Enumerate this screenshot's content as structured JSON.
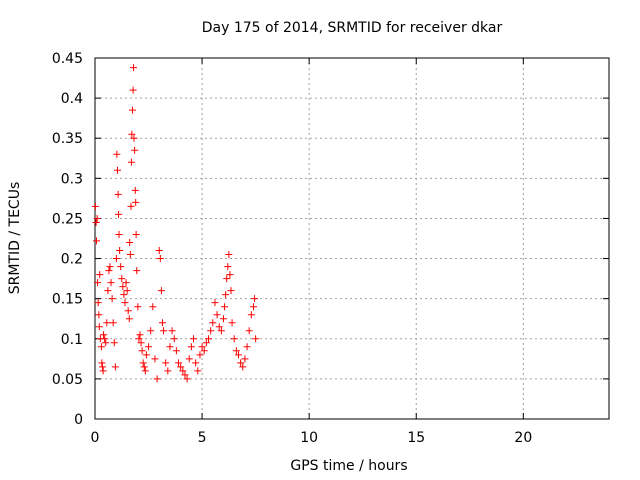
{
  "chart_data": {
    "type": "scatter",
    "title": "Day 175 of 2014, SRMTID for receiver dkar",
    "xlabel": "GPS time / hours",
    "ylabel": "SRMTID / TECUs",
    "xlim": [
      0,
      24
    ],
    "ylim": [
      0,
      0.45
    ],
    "xticks": [
      0,
      5,
      10,
      15,
      20
    ],
    "xtick_labels": [
      "0",
      "5",
      "10",
      "15",
      "20"
    ],
    "yticks": [
      0,
      0.05,
      0.1,
      0.15,
      0.2,
      0.25,
      0.3,
      0.35,
      0.4,
      0.45
    ],
    "ytick_labels": [
      "0",
      "0.05",
      "0.1",
      "0.15",
      "0.2",
      "0.25",
      "0.3",
      "0.35",
      "0.4",
      "0.45"
    ],
    "grid": true,
    "marker": "+",
    "color": "#ff0000",
    "series": [
      {
        "name": "SRMTID",
        "points": [
          [
            0.02,
            0.265
          ],
          [
            0.05,
            0.245
          ],
          [
            0.07,
            0.222
          ],
          [
            0.1,
            0.25
          ],
          [
            0.12,
            0.17
          ],
          [
            0.15,
            0.145
          ],
          [
            0.18,
            0.13
          ],
          [
            0.2,
            0.115
          ],
          [
            0.22,
            0.18
          ],
          [
            0.25,
            0.1
          ],
          [
            0.3,
            0.09
          ],
          [
            0.32,
            0.07
          ],
          [
            0.35,
            0.065
          ],
          [
            0.38,
            0.06
          ],
          [
            0.4,
            0.105
          ],
          [
            0.45,
            0.1
          ],
          [
            0.5,
            0.095
          ],
          [
            0.55,
            0.12
          ],
          [
            0.6,
            0.16
          ],
          [
            0.65,
            0.185
          ],
          [
            0.7,
            0.19
          ],
          [
            0.75,
            0.17
          ],
          [
            0.8,
            0.15
          ],
          [
            0.85,
            0.12
          ],
          [
            0.9,
            0.095
          ],
          [
            0.95,
            0.065
          ],
          [
            1.0,
            0.2
          ],
          [
            1.02,
            0.33
          ],
          [
            1.05,
            0.31
          ],
          [
            1.08,
            0.28
          ],
          [
            1.1,
            0.255
          ],
          [
            1.12,
            0.23
          ],
          [
            1.15,
            0.21
          ],
          [
            1.2,
            0.19
          ],
          [
            1.25,
            0.175
          ],
          [
            1.3,
            0.165
          ],
          [
            1.35,
            0.155
          ],
          [
            1.4,
            0.145
          ],
          [
            1.45,
            0.17
          ],
          [
            1.5,
            0.16
          ],
          [
            1.55,
            0.135
          ],
          [
            1.6,
            0.125
          ],
          [
            1.62,
            0.22
          ],
          [
            1.65,
            0.205
          ],
          [
            1.68,
            0.265
          ],
          [
            1.7,
            0.32
          ],
          [
            1.72,
            0.355
          ],
          [
            1.75,
            0.385
          ],
          [
            1.78,
            0.41
          ],
          [
            1.8,
            0.438
          ],
          [
            1.82,
            0.35
          ],
          [
            1.85,
            0.335
          ],
          [
            1.88,
            0.285
          ],
          [
            1.9,
            0.27
          ],
          [
            1.92,
            0.23
          ],
          [
            1.95,
            0.185
          ],
          [
            2.0,
            0.14
          ],
          [
            2.05,
            0.1
          ],
          [
            2.1,
            0.105
          ],
          [
            2.15,
            0.095
          ],
          [
            2.2,
            0.085
          ],
          [
            2.25,
            0.07
          ],
          [
            2.3,
            0.065
          ],
          [
            2.35,
            0.06
          ],
          [
            2.4,
            0.08
          ],
          [
            2.5,
            0.09
          ],
          [
            2.6,
            0.11
          ],
          [
            2.7,
            0.14
          ],
          [
            2.8,
            0.075
          ],
          [
            2.9,
            0.05
          ],
          [
            3.0,
            0.21
          ],
          [
            3.05,
            0.2
          ],
          [
            3.1,
            0.16
          ],
          [
            3.15,
            0.12
          ],
          [
            3.2,
            0.11
          ],
          [
            3.3,
            0.07
          ],
          [
            3.4,
            0.06
          ],
          [
            3.5,
            0.09
          ],
          [
            3.6,
            0.11
          ],
          [
            3.7,
            0.1
          ],
          [
            3.8,
            0.085
          ],
          [
            3.9,
            0.07
          ],
          [
            4.0,
            0.065
          ],
          [
            4.1,
            0.06
          ],
          [
            4.2,
            0.055
          ],
          [
            4.3,
            0.05
          ],
          [
            4.4,
            0.075
          ],
          [
            4.5,
            0.09
          ],
          [
            4.6,
            0.1
          ],
          [
            4.7,
            0.07
          ],
          [
            4.8,
            0.06
          ],
          [
            4.9,
            0.08
          ],
          [
            5.0,
            0.09
          ],
          [
            5.1,
            0.085
          ],
          [
            5.2,
            0.095
          ],
          [
            5.3,
            0.1
          ],
          [
            5.4,
            0.11
          ],
          [
            5.5,
            0.12
          ],
          [
            5.6,
            0.145
          ],
          [
            5.7,
            0.13
          ],
          [
            5.8,
            0.115
          ],
          [
            5.9,
            0.11
          ],
          [
            6.0,
            0.125
          ],
          [
            6.05,
            0.14
          ],
          [
            6.1,
            0.155
          ],
          [
            6.15,
            0.175
          ],
          [
            6.2,
            0.19
          ],
          [
            6.25,
            0.205
          ],
          [
            6.3,
            0.18
          ],
          [
            6.35,
            0.16
          ],
          [
            6.4,
            0.12
          ],
          [
            6.5,
            0.1
          ],
          [
            6.6,
            0.085
          ],
          [
            6.7,
            0.08
          ],
          [
            6.8,
            0.07
          ],
          [
            6.9,
            0.065
          ],
          [
            7.0,
            0.075
          ],
          [
            7.1,
            0.09
          ],
          [
            7.2,
            0.11
          ],
          [
            7.3,
            0.13
          ],
          [
            7.4,
            0.14
          ],
          [
            7.45,
            0.15
          ],
          [
            7.5,
            0.1
          ]
        ]
      }
    ]
  }
}
